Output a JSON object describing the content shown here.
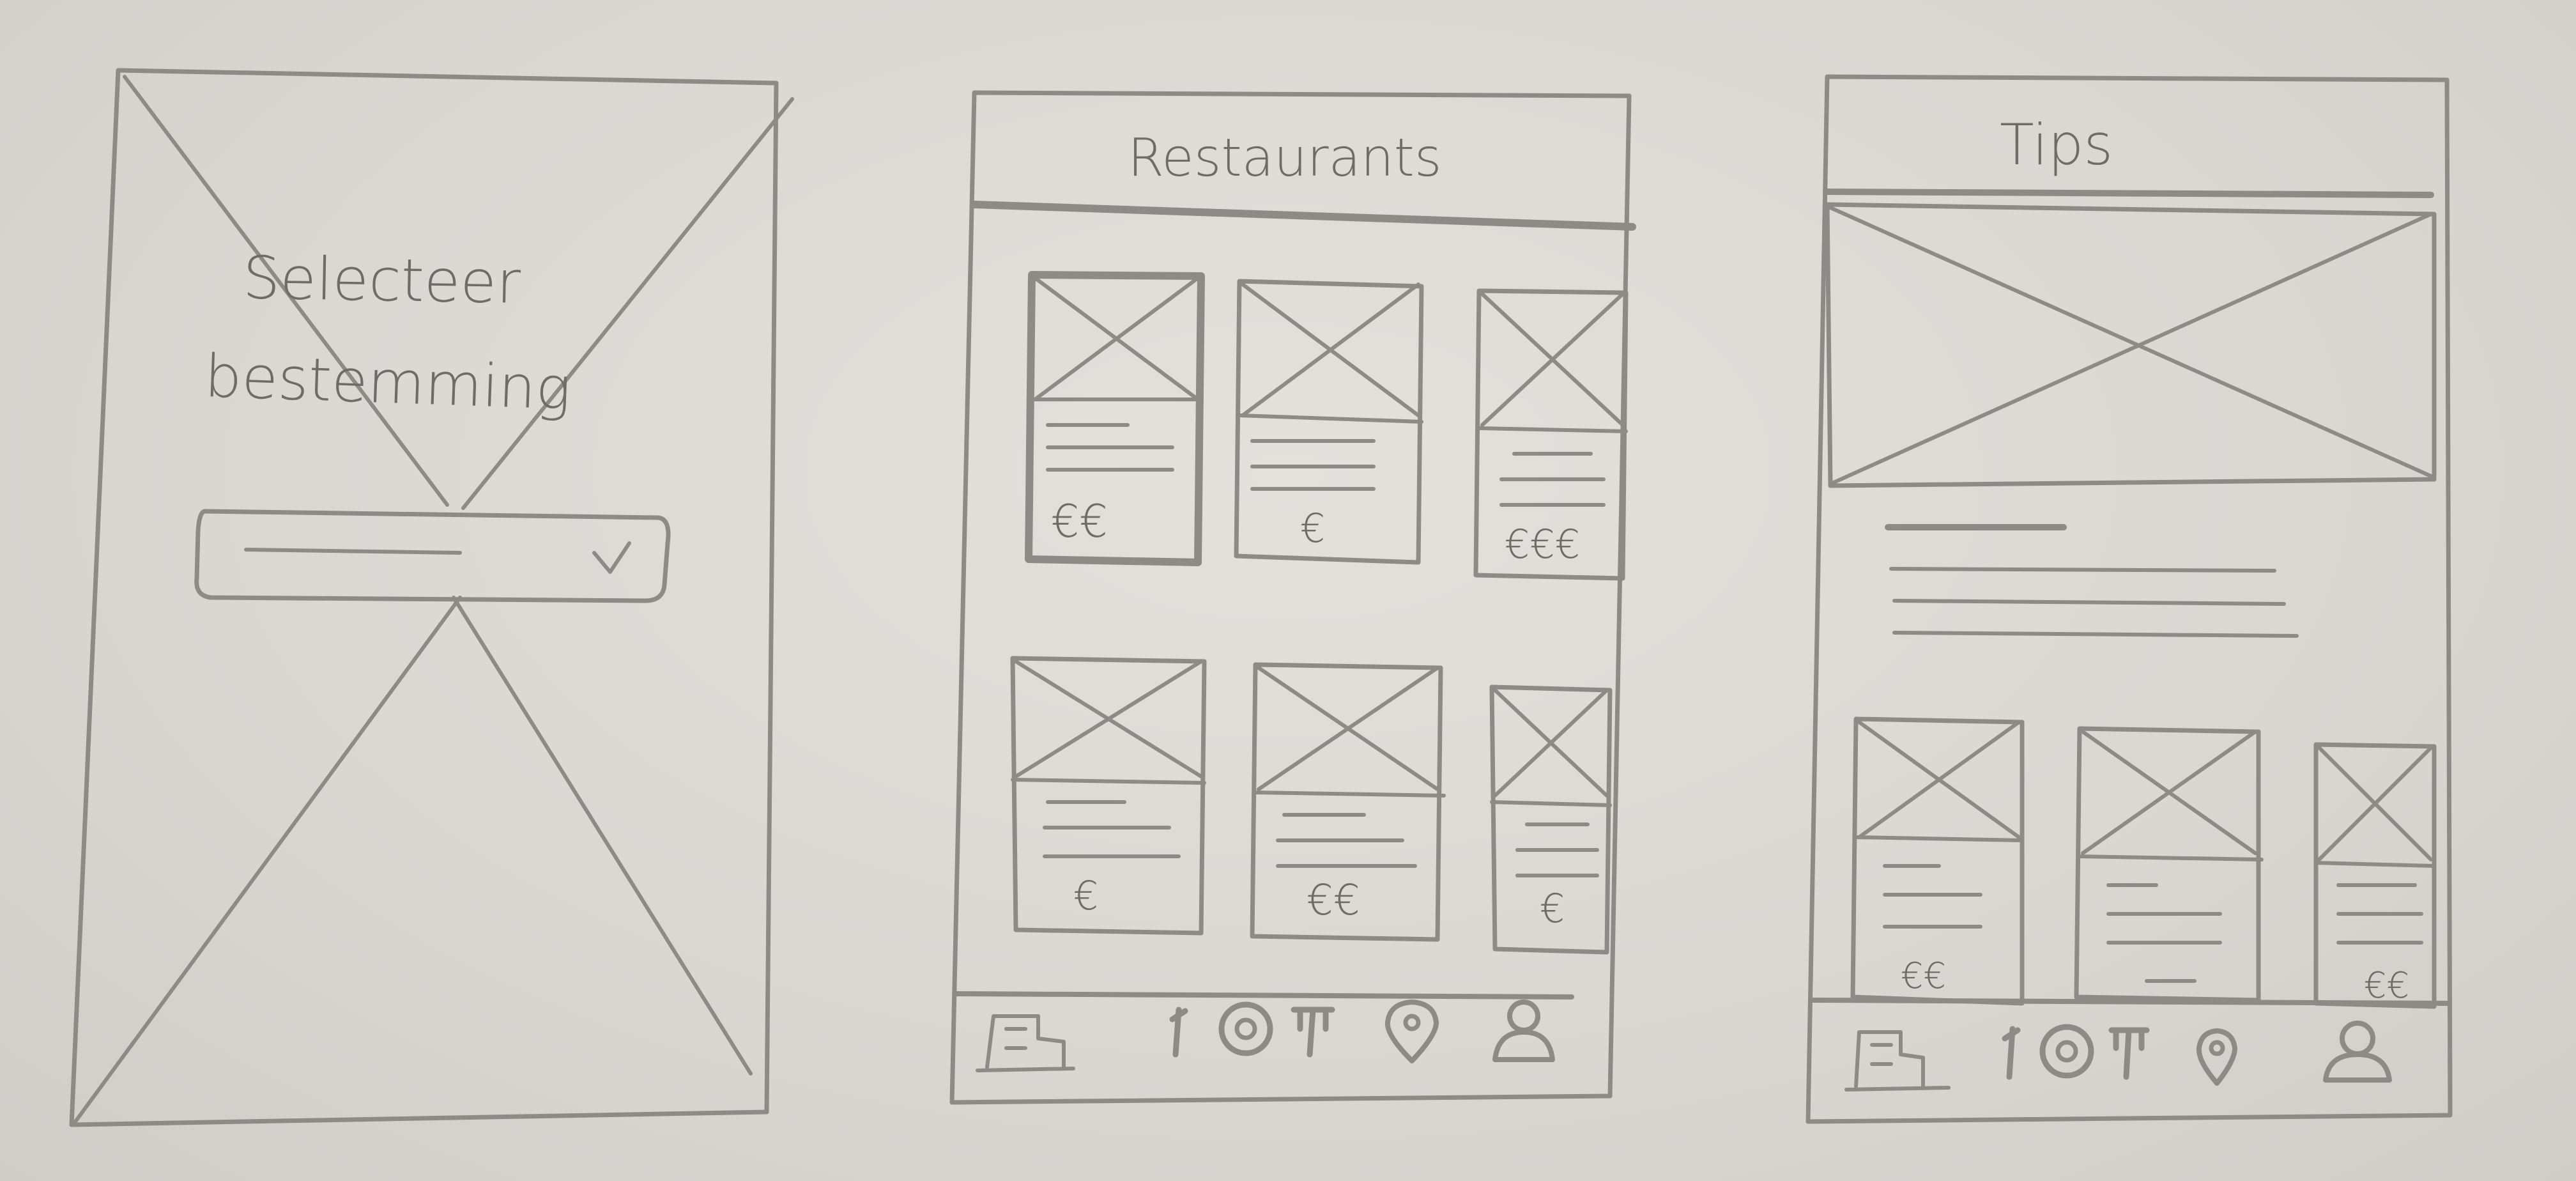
{
  "screen_select": {
    "title_line1": "Selecteer",
    "title_line2": "bestemming",
    "dropdown_chevron": "v"
  },
  "screen_restaurants": {
    "header": "Restaurants",
    "cards_row1": [
      {
        "price": "€€"
      },
      {
        "price": "€"
      },
      {
        "price": "€€€"
      }
    ],
    "cards_row2": [
      {
        "price": "€"
      },
      {
        "price": "€€"
      },
      {
        "price": "€"
      }
    ],
    "nav_icons": [
      "city-icon",
      "food-icon",
      "location-pin-icon",
      "user-icon"
    ]
  },
  "screen_tips": {
    "header": "Tips",
    "cards": [
      {
        "price": "€€"
      },
      {
        "price": ""
      },
      {
        "price": "€€"
      }
    ],
    "nav_icons": [
      "city-icon",
      "food-icon",
      "location-pin-icon",
      "user-icon"
    ]
  },
  "colors": {
    "paper": "#dcdad5",
    "pencil": "#8d8b88",
    "pencil_dark": "#6e6c69"
  }
}
